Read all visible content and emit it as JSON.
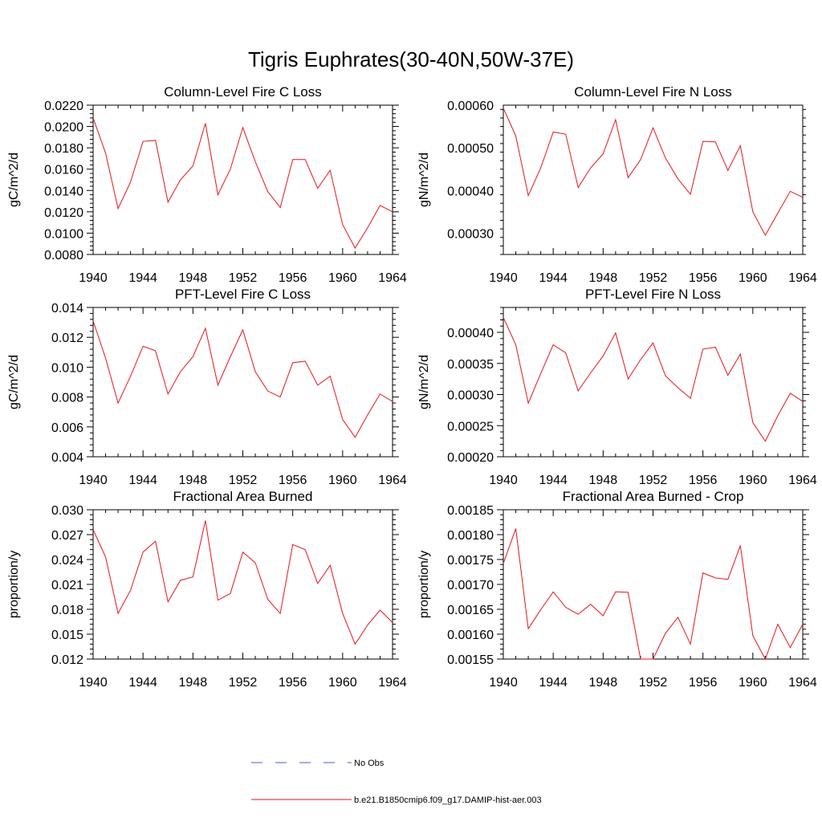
{
  "figure": {
    "title": "Tigris Euphrates(30-40N,50W-37E)"
  },
  "legend": [
    {
      "label": "No Obs",
      "color": "#4a5bd0",
      "dash": true
    },
    {
      "label": "b.e21.B1850cmip6.f09_g17.DAMIP-hist-aer.003",
      "color": "#e8141b",
      "dash": false
    }
  ],
  "chart_data": [
    {
      "type": "line",
      "title": "Column-Level Fire C Loss",
      "ylabel": "gC/m^2/d",
      "xlim": [
        1940,
        1964
      ],
      "ylim": [
        0.008,
        0.022
      ],
      "yticks": [
        "0.0080",
        "0.0100",
        "0.0120",
        "0.0140",
        "0.0160",
        "0.0180",
        "0.0200",
        "0.0220"
      ],
      "xticks": [
        "1940",
        "1944",
        "1948",
        "1952",
        "1956",
        "1960",
        "1964"
      ],
      "x": [
        1940,
        1941,
        1942,
        1943,
        1944,
        1945,
        1946,
        1947,
        1948,
        1949,
        1950,
        1951,
        1952,
        1953,
        1954,
        1955,
        1956,
        1957,
        1958,
        1959,
        1960,
        1961,
        1962,
        1963,
        1964
      ],
      "series": [
        {
          "values": [
            0.0208,
            0.0175,
            0.0123,
            0.0148,
            0.0186,
            0.0187,
            0.0129,
            0.015,
            0.0163,
            0.0203,
            0.0136,
            0.016,
            0.0199,
            0.0167,
            0.0139,
            0.0124,
            0.0169,
            0.0169,
            0.0142,
            0.0159,
            0.0108,
            0.0086,
            0.0105,
            0.0126,
            0.012
          ],
          "color": "#e8141b"
        }
      ]
    },
    {
      "type": "line",
      "title": "Column-Level Fire N Loss",
      "ylabel": "gN/m^2/d",
      "xlim": [
        1940,
        1964
      ],
      "ylim": [
        0.00025,
        0.0006
      ],
      "yticks": [
        "0.00030",
        "0.00040",
        "0.00050",
        "0.00060"
      ],
      "xticks": [
        "1940",
        "1944",
        "1948",
        "1952",
        "1956",
        "1960",
        "1964"
      ],
      "x": [
        1940,
        1941,
        1942,
        1943,
        1944,
        1945,
        1946,
        1947,
        1948,
        1949,
        1950,
        1951,
        1952,
        1953,
        1954,
        1955,
        1956,
        1957,
        1958,
        1959,
        1960,
        1961,
        1962,
        1963,
        1964
      ],
      "series": [
        {
          "values": [
            0.000593,
            0.000528,
            0.000388,
            0.000453,
            0.000537,
            0.000532,
            0.000407,
            0.000453,
            0.000486,
            0.000566,
            0.00043,
            0.000472,
            0.000547,
            0.000476,
            0.000427,
            0.000391,
            0.000515,
            0.000514,
            0.000447,
            0.000505,
            0.00035,
            0.000295,
            0.000347,
            0.000398,
            0.000384
          ],
          "color": "#e8141b"
        }
      ]
    },
    {
      "type": "line",
      "title": "PFT-Level Fire C Loss",
      "ylabel": "gC/m^2/d",
      "xlim": [
        1940,
        1964
      ],
      "ylim": [
        0.004,
        0.014
      ],
      "yticks": [
        "0.004",
        "0.006",
        "0.008",
        "0.010",
        "0.012",
        "0.014"
      ],
      "xticks": [
        "1940",
        "1944",
        "1948",
        "1952",
        "1956",
        "1960",
        "1964"
      ],
      "x": [
        1940,
        1941,
        1942,
        1943,
        1944,
        1945,
        1946,
        1947,
        1948,
        1949,
        1950,
        1951,
        1952,
        1953,
        1954,
        1955,
        1956,
        1957,
        1958,
        1959,
        1960,
        1961,
        1962,
        1963,
        1964
      ],
      "series": [
        {
          "values": [
            0.0131,
            0.0106,
            0.0076,
            0.0094,
            0.0114,
            0.0111,
            0.0082,
            0.0097,
            0.0107,
            0.0126,
            0.0088,
            0.0107,
            0.0125,
            0.0097,
            0.0084,
            0.008,
            0.0103,
            0.0104,
            0.0088,
            0.0094,
            0.0065,
            0.0053,
            0.0068,
            0.0082,
            0.0077
          ],
          "color": "#e8141b"
        }
      ]
    },
    {
      "type": "line",
      "title": "PFT-Level Fire N Loss",
      "ylabel": "gN/m^2/d",
      "xlim": [
        1940,
        1964
      ],
      "ylim": [
        0.0002,
        0.00044
      ],
      "yticks": [
        "0.00020",
        "0.00025",
        "0.00030",
        "0.00035",
        "0.00040"
      ],
      "xticks": [
        "1940",
        "1944",
        "1948",
        "1952",
        "1956",
        "1960",
        "1964"
      ],
      "x": [
        1940,
        1941,
        1942,
        1943,
        1944,
        1945,
        1946,
        1947,
        1948,
        1949,
        1950,
        1951,
        1952,
        1953,
        1954,
        1955,
        1956,
        1957,
        1958,
        1959,
        1960,
        1961,
        1962,
        1963,
        1964
      ],
      "series": [
        {
          "values": [
            0.000424,
            0.00038,
            0.000286,
            0.000334,
            0.00038,
            0.000367,
            0.000306,
            0.000335,
            0.000362,
            0.000399,
            0.000325,
            0.000356,
            0.000383,
            0.00033,
            0.000311,
            0.000294,
            0.000373,
            0.000376,
            0.000331,
            0.000365,
            0.000255,
            0.000225,
            0.000266,
            0.000302,
            0.000289
          ],
          "color": "#e8141b"
        }
      ]
    },
    {
      "type": "line",
      "title": "Fractional Area Burned",
      "ylabel": "proportion/y",
      "xlim": [
        1940,
        1964
      ],
      "ylim": [
        0.012,
        0.03
      ],
      "yticks": [
        "0.012",
        "0.015",
        "0.018",
        "0.021",
        "0.024",
        "0.027",
        "0.030"
      ],
      "xticks": [
        "1940",
        "1944",
        "1948",
        "1952",
        "1956",
        "1960",
        "1964"
      ],
      "x": [
        1940,
        1941,
        1942,
        1943,
        1944,
        1945,
        1946,
        1947,
        1948,
        1949,
        1950,
        1951,
        1952,
        1953,
        1954,
        1955,
        1956,
        1957,
        1958,
        1959,
        1960,
        1961,
        1962,
        1963,
        1964
      ],
      "series": [
        {
          "values": [
            0.0276,
            0.0243,
            0.0175,
            0.0203,
            0.0249,
            0.0262,
            0.0189,
            0.0215,
            0.0219,
            0.0287,
            0.0191,
            0.0199,
            0.0249,
            0.0236,
            0.0192,
            0.0175,
            0.0258,
            0.0252,
            0.0211,
            0.0233,
            0.0175,
            0.0138,
            0.0161,
            0.0179,
            0.0164
          ],
          "color": "#e8141b"
        }
      ]
    },
    {
      "type": "line",
      "title": "Fractional Area Burned - Crop",
      "ylabel": "proportion/y",
      "xlim": [
        1940,
        1964
      ],
      "ylim": [
        0.00155,
        0.00185
      ],
      "yticks": [
        "0.00155",
        "0.00160",
        "0.00165",
        "0.00170",
        "0.00175",
        "0.00180",
        "0.00185"
      ],
      "xticks": [
        "1940",
        "1944",
        "1948",
        "1952",
        "1956",
        "1960",
        "1964"
      ],
      "x": [
        1940,
        1941,
        1942,
        1943,
        1944,
        1945,
        1946,
        1947,
        1948,
        1949,
        1950,
        1951,
        1952,
        1953,
        1954,
        1955,
        1956,
        1957,
        1958,
        1959,
        1960,
        1961,
        1962,
        1963,
        1964
      ],
      "series": [
        {
          "values": [
            0.001742,
            0.001812,
            0.001611,
            0.001649,
            0.001685,
            0.001654,
            0.00164,
            0.00166,
            0.001637,
            0.001685,
            0.001684,
            0.00155,
            0.00155,
            0.001602,
            0.001634,
            0.00158,
            0.001723,
            0.001713,
            0.00171,
            0.001778,
            0.001597,
            0.00155,
            0.00162,
            0.001573,
            0.00162
          ],
          "color": "#e8141b"
        }
      ]
    }
  ]
}
